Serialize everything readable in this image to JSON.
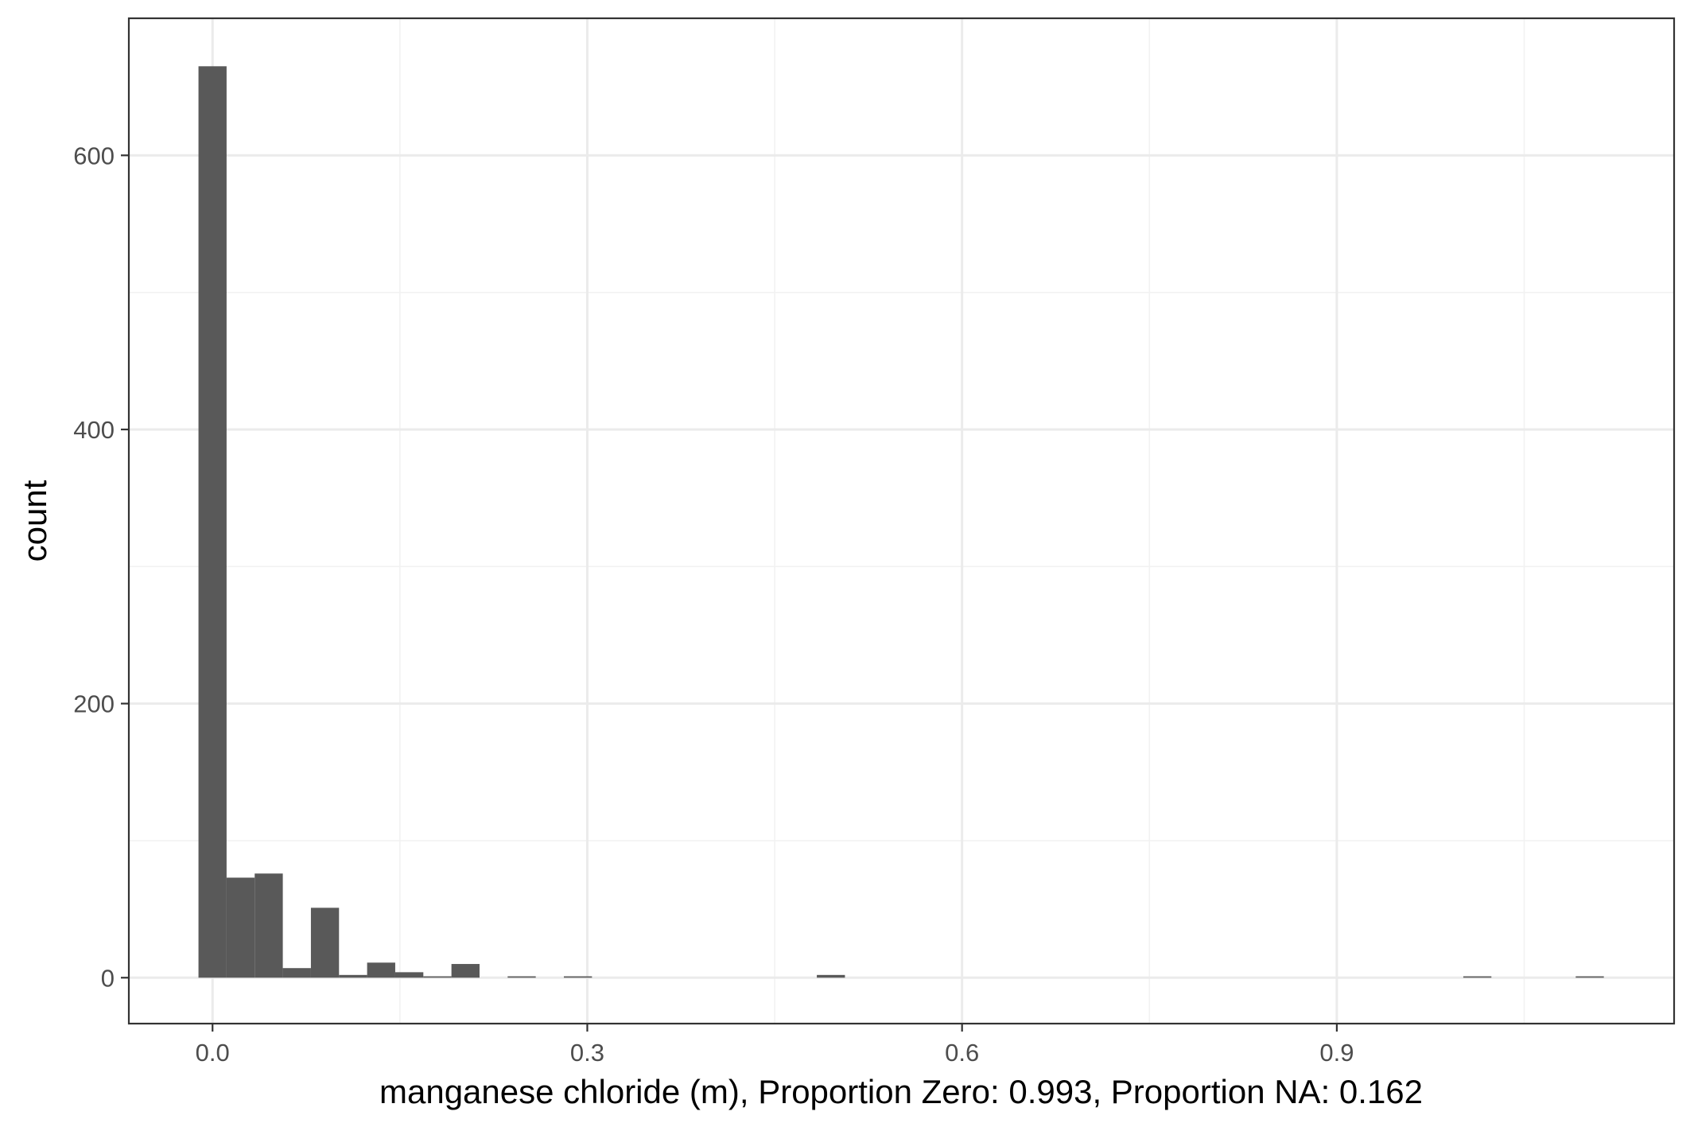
{
  "chart_data": {
    "type": "bar",
    "xlabel": "manganese chloride (m), Proportion Zero: 0.993, Proportion NA: 0.162",
    "ylabel": "count",
    "xlim": [
      -0.067,
      1.17
    ],
    "ylim": [
      -33.5,
      700
    ],
    "x_ticks": [
      0.0,
      0.3,
      0.6,
      0.9
    ],
    "x_tick_labels": [
      "0.0",
      "0.3",
      "0.6",
      "0.9"
    ],
    "x_minor_ticks": [
      0.15,
      0.45,
      0.75,
      1.05
    ],
    "y_ticks": [
      0,
      200,
      400,
      600
    ],
    "y_tick_labels": [
      "0",
      "200",
      "400",
      "600"
    ],
    "y_minor_ticks": [
      100,
      300,
      500
    ],
    "grid": true,
    "bin_width": 0.0225,
    "bins": [
      {
        "x": 0.0,
        "count": 665
      },
      {
        "x": 0.0225,
        "count": 73
      },
      {
        "x": 0.045,
        "count": 76
      },
      {
        "x": 0.0675,
        "count": 7
      },
      {
        "x": 0.09,
        "count": 51
      },
      {
        "x": 0.1125,
        "count": 2
      },
      {
        "x": 0.135,
        "count": 11
      },
      {
        "x": 0.1575,
        "count": 4
      },
      {
        "x": 0.18,
        "count": 1
      },
      {
        "x": 0.2025,
        "count": 10
      },
      {
        "x": 0.2475,
        "count": 1
      },
      {
        "x": 0.2925,
        "count": 1
      },
      {
        "x": 0.495,
        "count": 2
      },
      {
        "x": 1.0125,
        "count": 1
      },
      {
        "x": 1.1025,
        "count": 1
      }
    ],
    "colors": {
      "bar": "#595959",
      "grid_major": "#ebebeb",
      "grid_minor": "#f2f2f2",
      "panel_border": "#333333",
      "tick_label": "#4d4d4d"
    }
  }
}
